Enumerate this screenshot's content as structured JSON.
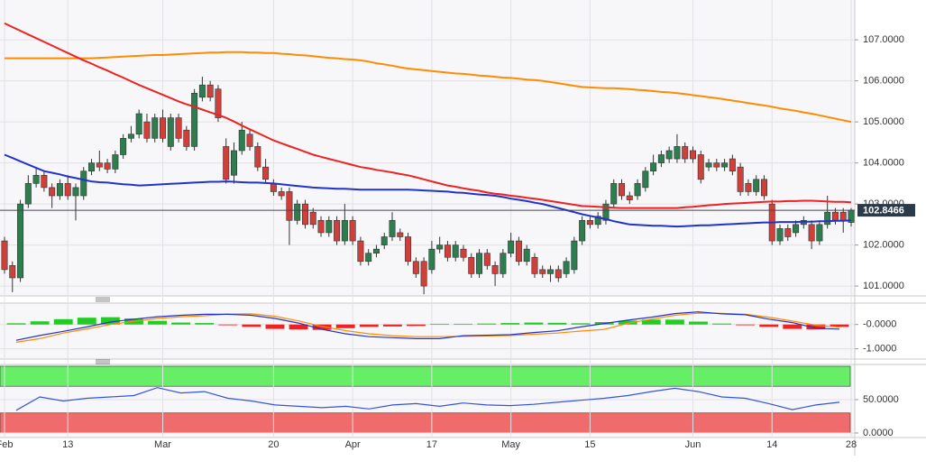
{
  "chart_data": [
    {
      "type": "candlestick",
      "categories": [
        "Feb",
        null,
        null,
        null,
        null,
        null,
        null,
        null,
        "13",
        null,
        null,
        null,
        null,
        null,
        null,
        null,
        null,
        null,
        null,
        null,
        "Mar",
        null,
        null,
        null,
        null,
        null,
        null,
        null,
        null,
        null,
        null,
        null,
        null,
        null,
        "20",
        null,
        null,
        null,
        null,
        null,
        null,
        null,
        null,
        null,
        "Apr",
        null,
        null,
        null,
        null,
        null,
        null,
        null,
        null,
        null,
        "17",
        null,
        null,
        null,
        null,
        null,
        null,
        null,
        null,
        null,
        "May",
        null,
        null,
        null,
        null,
        null,
        null,
        null,
        null,
        null,
        "15",
        null,
        null,
        null,
        null,
        null,
        null,
        null,
        null,
        null,
        null,
        null,
        null,
        "Jun",
        null,
        null,
        null,
        null,
        null,
        null,
        null,
        null,
        null,
        "14",
        null,
        null,
        null,
        null,
        null,
        null,
        null,
        null,
        null,
        "28"
      ],
      "open": [
        102.1,
        101.5,
        101.2,
        103.0,
        103.5,
        103.7,
        103.4,
        103.2,
        103.5,
        103.2,
        103.2,
        103.8,
        104.0,
        104.0,
        103.85,
        104.2,
        104.6,
        104.7,
        105.0,
        104.6,
        105.1,
        104.4,
        105.1,
        104.8,
        104.4,
        105.6,
        105.9,
        105.8,
        104.4,
        103.7,
        104.3,
        104.7,
        104.4,
        103.9,
        103.5,
        103.3,
        103.3,
        102.6,
        103.0,
        102.8,
        102.6,
        102.3,
        102.6,
        102.1,
        102.6,
        102.1,
        101.6,
        101.8,
        102.0,
        102.2,
        102.3,
        102.2,
        101.6,
        101.6,
        101.4,
        101.9,
        102.0,
        101.7,
        101.9,
        101.7,
        101.3,
        101.8,
        101.5,
        101.3,
        101.8,
        102.1,
        101.6,
        101.7,
        101.4,
        101.3,
        101.4,
        101.3,
        101.4,
        102.1,
        102.6,
        102.5,
        102.6,
        103.0,
        103.5,
        103.2,
        103.2,
        103.4,
        103.8,
        104.0,
        104.1,
        104.1,
        104.4,
        104.3,
        104.2,
        103.9,
        104.0,
        103.9,
        104.1,
        103.9,
        103.5,
        103.3,
        103.6,
        103.0,
        102.1,
        102.4,
        102.3,
        102.5,
        102.5,
        102.1,
        102.5,
        102.8,
        102.8,
        102.55
      ],
      "high": [
        102.2,
        101.6,
        103.1,
        103.7,
        103.9,
        103.8,
        103.5,
        103.6,
        103.7,
        103.5,
        103.9,
        104.1,
        104.3,
        104.1,
        104.3,
        104.7,
        104.9,
        105.3,
        105.2,
        105.2,
        105.3,
        105.2,
        105.2,
        104.9,
        105.8,
        106.1,
        106.0,
        105.9,
        104.6,
        104.5,
        105.0,
        104.8,
        104.5,
        104.1,
        103.6,
        103.4,
        103.4,
        103.1,
        103.1,
        102.9,
        102.7,
        102.7,
        102.7,
        103.0,
        102.7,
        102.2,
        101.9,
        102.0,
        102.3,
        102.8,
        102.4,
        102.3,
        101.7,
        101.7,
        102.1,
        102.2,
        102.1,
        102.1,
        102.0,
        101.8,
        101.9,
        101.9,
        101.6,
        101.9,
        102.3,
        102.2,
        102.0,
        101.8,
        101.5,
        101.5,
        101.5,
        101.7,
        102.2,
        102.7,
        102.7,
        102.8,
        103.1,
        103.6,
        103.6,
        103.3,
        103.6,
        103.9,
        104.2,
        104.3,
        104.4,
        104.7,
        104.5,
        104.4,
        104.3,
        104.1,
        104.1,
        104.1,
        104.2,
        104.0,
        103.6,
        103.7,
        103.7,
        103.1,
        102.5,
        102.5,
        102.6,
        102.7,
        102.6,
        102.6,
        103.2,
        102.9,
        102.9,
        102.9
      ],
      "low": [
        101.3,
        100.85,
        101.1,
        102.9,
        103.4,
        103.3,
        102.9,
        103.1,
        103.1,
        102.6,
        103.1,
        103.7,
        103.8,
        103.75,
        103.75,
        104.1,
        104.5,
        104.6,
        104.5,
        104.5,
        104.5,
        104.3,
        104.5,
        104.3,
        104.3,
        105.5,
        105.5,
        105.0,
        103.5,
        103.5,
        104.2,
        104.3,
        103.8,
        103.5,
        103.2,
        103.1,
        102.0,
        102.5,
        102.4,
        102.4,
        102.2,
        102.2,
        102.0,
        102.0,
        102.0,
        101.5,
        101.5,
        101.7,
        101.9,
        102.1,
        102.1,
        101.5,
        101.2,
        100.8,
        101.3,
        101.8,
        101.6,
        101.6,
        101.6,
        101.2,
        101.2,
        101.4,
        101.0,
        101.2,
        101.7,
        101.5,
        101.5,
        101.2,
        101.2,
        101.1,
        101.1,
        101.2,
        101.3,
        102.0,
        102.4,
        102.4,
        102.5,
        102.9,
        103.1,
        103.0,
        103.1,
        103.3,
        103.7,
        103.9,
        104.0,
        104.0,
        104.0,
        104.0,
        103.5,
        103.8,
        103.8,
        103.8,
        103.7,
        103.2,
        103.2,
        103.2,
        103.1,
        102.0,
        102.0,
        102.1,
        102.2,
        102.4,
        101.9,
        102.0,
        102.4,
        102.5,
        102.3,
        102.45
      ],
      "close": [
        101.4,
        101.2,
        103.0,
        103.5,
        103.7,
        103.4,
        103.2,
        103.5,
        103.2,
        103.4,
        103.8,
        104.0,
        103.9,
        103.85,
        104.2,
        104.6,
        104.7,
        105.2,
        104.6,
        105.1,
        104.6,
        105.1,
        104.6,
        104.4,
        105.7,
        105.9,
        105.6,
        105.1,
        103.6,
        104.3,
        104.8,
        104.4,
        103.9,
        103.6,
        103.3,
        103.2,
        102.6,
        103.0,
        102.5,
        102.5,
        102.3,
        102.6,
        102.1,
        102.6,
        102.1,
        101.6,
        101.8,
        101.9,
        102.2,
        102.6,
        102.2,
        101.6,
        101.3,
        101.0,
        101.9,
        102.0,
        101.7,
        102.0,
        101.7,
        101.3,
        101.8,
        101.5,
        101.3,
        101.8,
        102.1,
        101.6,
        101.9,
        101.3,
        101.3,
        101.4,
        101.2,
        101.6,
        102.1,
        102.6,
        102.5,
        102.7,
        103.0,
        103.5,
        103.2,
        103.1,
        103.5,
        103.8,
        104.0,
        104.2,
        104.3,
        104.4,
        104.1,
        104.1,
        103.6,
        104.0,
        103.9,
        104.0,
        103.8,
        103.3,
        103.3,
        103.6,
        103.2,
        102.1,
        102.4,
        102.2,
        102.5,
        102.6,
        102.1,
        102.5,
        102.8,
        102.6,
        102.6,
        102.85
      ],
      "up_color": "#2e7d4f",
      "down_color": "#d0403a",
      "lines": [
        {
          "color": "#ff8c00",
          "values": [
            106.55,
            106.55,
            106.55,
            106.55,
            106.55,
            106.55,
            106.55,
            106.55,
            106.55,
            106.55,
            106.55,
            106.55,
            106.56,
            106.57,
            106.58,
            106.59,
            106.6,
            106.61,
            106.62,
            106.63,
            106.63,
            106.64,
            106.65,
            106.66,
            106.67,
            106.68,
            106.69,
            106.69,
            106.7,
            106.7,
            106.7,
            106.69,
            106.69,
            106.68,
            106.68,
            106.66,
            106.65,
            106.63,
            106.62,
            106.6,
            106.58,
            106.56,
            106.55,
            106.53,
            106.52,
            106.5,
            106.47,
            106.43,
            106.4,
            106.37,
            106.33,
            106.3,
            106.28,
            106.26,
            106.24,
            106.22,
            106.2,
            106.18,
            106.17,
            106.15,
            106.13,
            106.12,
            106.1,
            106.08,
            106.07,
            106.05,
            106.03,
            106.02,
            106.0,
            105.97,
            105.94,
            105.91,
            105.88,
            105.85,
            105.84,
            105.83,
            105.82,
            105.82,
            105.81,
            105.8,
            105.78,
            105.77,
            105.75,
            105.73,
            105.72,
            105.7,
            105.68,
            105.65,
            105.63,
            105.6,
            105.58,
            105.55,
            105.52,
            105.49,
            105.46,
            105.43,
            105.4,
            105.37,
            105.33,
            105.3,
            105.27,
            105.23,
            105.2,
            105.16,
            105.12,
            105.08,
            105.04,
            105.0
          ]
        },
        {
          "color": "#ee2222",
          "values": [
            107.4,
            107.31,
            107.22,
            107.13,
            107.04,
            106.95,
            106.86,
            106.77,
            106.68,
            106.59,
            106.5,
            106.42,
            106.33,
            106.25,
            106.16,
            106.08,
            105.99,
            105.9,
            105.82,
            105.74,
            105.66,
            105.58,
            105.5,
            105.43,
            105.37,
            105.3,
            105.23,
            105.17,
            105.1,
            105.01,
            104.91,
            104.82,
            104.73,
            104.64,
            104.55,
            104.48,
            104.41,
            104.34,
            104.27,
            104.2,
            104.15,
            104.1,
            104.05,
            104.0,
            103.95,
            103.9,
            103.87,
            103.83,
            103.8,
            103.77,
            103.73,
            103.7,
            103.65,
            103.6,
            103.55,
            103.5,
            103.45,
            103.42,
            103.38,
            103.35,
            103.32,
            103.28,
            103.25,
            103.23,
            103.2,
            103.18,
            103.15,
            103.13,
            103.1,
            103.07,
            103.04,
            103.01,
            102.98,
            102.95,
            102.94,
            102.93,
            102.92,
            102.91,
            102.9,
            102.9,
            102.9,
            102.9,
            102.9,
            102.9,
            102.9,
            102.9,
            102.92,
            102.93,
            102.95,
            102.97,
            102.98,
            103.0,
            103.01,
            103.02,
            103.03,
            103.04,
            103.05,
            103.06,
            103.06,
            103.07,
            103.07,
            103.08,
            103.08,
            103.07,
            103.06,
            103.05,
            103.05,
            103.04
          ]
        },
        {
          "color": "#2233cc",
          "values": [
            104.2,
            104.12,
            104.04,
            103.96,
            103.88,
            103.8,
            103.76,
            103.72,
            103.67,
            103.63,
            103.59,
            103.55,
            103.53,
            103.52,
            103.5,
            103.48,
            103.47,
            103.45,
            103.46,
            103.47,
            103.48,
            103.49,
            103.5,
            103.51,
            103.52,
            103.53,
            103.54,
            103.54,
            103.55,
            103.54,
            103.53,
            103.52,
            103.52,
            103.51,
            103.5,
            103.48,
            103.46,
            103.44,
            103.42,
            103.4,
            103.39,
            103.38,
            103.37,
            103.37,
            103.36,
            103.35,
            103.35,
            103.35,
            103.35,
            103.35,
            103.35,
            103.35,
            103.34,
            103.33,
            103.32,
            103.31,
            103.3,
            103.28,
            103.27,
            103.25,
            103.23,
            103.22,
            103.2,
            103.17,
            103.13,
            103.1,
            103.07,
            103.03,
            103.0,
            102.95,
            102.9,
            102.85,
            102.8,
            102.75,
            102.71,
            102.67,
            102.63,
            102.58,
            102.54,
            102.5,
            102.49,
            102.48,
            102.47,
            102.47,
            102.46,
            102.45,
            102.46,
            102.47,
            102.48,
            102.48,
            102.49,
            102.5,
            102.51,
            102.52,
            102.53,
            102.54,
            102.55,
            102.55,
            102.56,
            102.56,
            102.56,
            102.57,
            102.57,
            102.58,
            102.58,
            102.59,
            102.59,
            102.6
          ]
        }
      ],
      "last_price": 102.8466,
      "ylim": [
        100.76,
        107.97
      ],
      "yticks": [
        {
          "value": 101,
          "label": "101.0000"
        },
        {
          "value": 102,
          "label": "102.0000"
        },
        {
          "value": 103,
          "label": "103.0000"
        },
        {
          "value": 104,
          "label": "104.0000"
        },
        {
          "value": 105,
          "label": "105.0000"
        },
        {
          "value": 106,
          "label": "106.0000"
        },
        {
          "value": 107,
          "label": "107.0000"
        }
      ],
      "grid": true
    },
    {
      "type": "macd",
      "histogram": [
        0.05,
        0.13,
        0.22,
        0.28,
        0.3,
        0.25,
        0.15,
        0.08,
        0.06,
        -0.03,
        -0.1,
        -0.18,
        -0.2,
        -0.22,
        -0.15,
        -0.1,
        -0.08,
        -0.06,
        0.03,
        0.03,
        0.04,
        0.06,
        0.08,
        0.07,
        0.05,
        0.1,
        0.16,
        0.2,
        0.2,
        0.12,
        0.04,
        -0.03,
        -0.1,
        -0.18,
        -0.2,
        -0.1
      ],
      "up_color": "#22cc22",
      "down_color": "#ee2222",
      "macd": [
        -0.65,
        -0.45,
        -0.28,
        -0.1,
        0.1,
        0.22,
        0.32,
        0.38,
        0.42,
        0.42,
        0.38,
        0.25,
        0.06,
        -0.2,
        -0.38,
        -0.5,
        -0.54,
        -0.58,
        -0.58,
        -0.46,
        -0.44,
        -0.42,
        -0.33,
        -0.26,
        -0.1,
        0.04,
        0.18,
        0.3,
        0.45,
        0.52,
        0.44,
        0.4,
        0.22,
        0.08,
        -0.15,
        -0.19
      ],
      "macd_color": "#2233cc",
      "signal": [
        -0.73,
        -0.58,
        -0.35,
        -0.18,
        0.0,
        0.13,
        0.25,
        0.32,
        0.36,
        0.43,
        0.44,
        0.34,
        0.15,
        -0.08,
        -0.25,
        -0.38,
        -0.46,
        -0.5,
        -0.5,
        -0.49,
        -0.47,
        -0.45,
        -0.4,
        -0.35,
        -0.27,
        -0.2,
        0.05,
        0.22,
        0.38,
        0.47,
        0.46,
        0.42,
        0.3,
        0.14,
        -0.03,
        -0.11
      ],
      "signal_color": "#ff8c00",
      "ylim": [
        -1.42,
        0.88
      ],
      "yticks": [
        {
          "value": 0,
          "label": "-0.0000"
        },
        {
          "value": -1,
          "label": "-1.0000"
        }
      ]
    },
    {
      "type": "rsi",
      "values": [
        34,
        54,
        48,
        52,
        54,
        56,
        68,
        60,
        62,
        52,
        48,
        42,
        40,
        38,
        40,
        36,
        42,
        44,
        40,
        45,
        42,
        41,
        43,
        46,
        49,
        52,
        56,
        62,
        67,
        62,
        54,
        52,
        44,
        35,
        42,
        46
      ],
      "color": "#3355dd",
      "zones": [
        {
          "from": 70,
          "to": 100,
          "color": "#66ee66"
        },
        {
          "from": 0,
          "to": 30,
          "color": "#f06b6b"
        }
      ],
      "ylim": [
        -6.8,
        102.7
      ],
      "yticks": [
        {
          "value": 0,
          "label": "0.0000"
        },
        {
          "value": 50,
          "label": "50.0000"
        }
      ]
    }
  ]
}
